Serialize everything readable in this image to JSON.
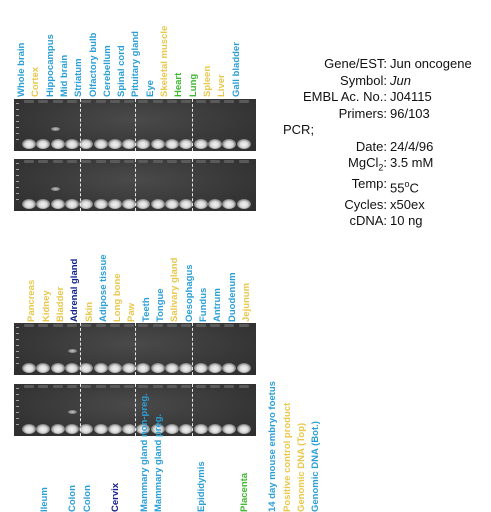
{
  "colors": {
    "blue": "#2a9fd6",
    "yellow": "#e8c84a",
    "green": "#3eb82e",
    "navy": "#0e1e8c",
    "gel_bg": "#383838"
  },
  "panel1": {
    "labels": [
      {
        "text": "Whole brain",
        "color": "blue"
      },
      {
        "text": "Cortex",
        "color": "yellow"
      },
      {
        "text": "Hippocampus",
        "color": "blue"
      },
      {
        "text": "Mid brain",
        "color": "blue"
      },
      {
        "text": "Striatum",
        "color": "blue"
      },
      {
        "text": "Olfactory bulb",
        "color": "blue"
      },
      {
        "text": "Cerebellum",
        "color": "blue"
      },
      {
        "text": "Spinal cord",
        "color": "blue"
      },
      {
        "text": "Pituitary gland",
        "color": "blue"
      },
      {
        "text": "Eye",
        "color": "blue"
      },
      {
        "text": "Skeletal muscle",
        "color": "yellow"
      },
      {
        "text": "Heart",
        "color": "green"
      },
      {
        "text": "Lung",
        "color": "green"
      },
      {
        "text": "Spleen",
        "color": "yellow"
      },
      {
        "text": "Liver",
        "color": "yellow"
      },
      {
        "text": "Gall bladder",
        "color": "blue"
      }
    ]
  },
  "panel2": {
    "labels": [
      {
        "text": "",
        "color": "blue"
      },
      {
        "text": "Pancreas",
        "color": "yellow"
      },
      {
        "text": "Kidney",
        "color": "yellow"
      },
      {
        "text": "Bladder",
        "color": "yellow"
      },
      {
        "text": "Adrenal gland",
        "color": "navy"
      },
      {
        "text": "Skin",
        "color": "yellow"
      },
      {
        "text": "Adipose tissue",
        "color": "blue"
      },
      {
        "text": "Long bone",
        "color": "yellow"
      },
      {
        "text": "Paw",
        "color": "yellow"
      },
      {
        "text": "Teeth",
        "color": "blue"
      },
      {
        "text": "Tongue",
        "color": "blue"
      },
      {
        "text": "Salivary gland",
        "color": "yellow"
      },
      {
        "text": "Oesophagus",
        "color": "blue"
      },
      {
        "text": "Fundus",
        "color": "blue"
      },
      {
        "text": "Antrum",
        "color": "blue"
      },
      {
        "text": "Duodenum",
        "color": "blue"
      },
      {
        "text": "Jejunum",
        "color": "yellow"
      }
    ]
  },
  "panel3": {
    "labels": [
      {
        "text": "",
        "color": "blue"
      },
      {
        "text": "",
        "color": "blue"
      },
      {
        "text": "Ileum",
        "color": "blue"
      },
      {
        "text": "",
        "color": "blue"
      },
      {
        "text": "Colon",
        "color": "blue"
      },
      {
        "text": "Colon",
        "color": "blue"
      },
      {
        "text": "",
        "color": "blue"
      },
      {
        "text": "Cervix",
        "color": "navy"
      },
      {
        "text": "",
        "color": "blue"
      },
      {
        "text": "Mammary gland non-preg.",
        "color": "blue"
      },
      {
        "text": "Mammary gland preg.",
        "color": "blue"
      },
      {
        "text": "",
        "color": "blue"
      },
      {
        "text": "",
        "color": "blue"
      },
      {
        "text": "Epididymis",
        "color": "blue"
      },
      {
        "text": "",
        "color": "blue"
      },
      {
        "text": "",
        "color": "blue"
      },
      {
        "text": "Placenta",
        "color": "green"
      },
      {
        "text": "",
        "color": "blue"
      },
      {
        "text": "14 day mouse embryo foetus",
        "color": "blue"
      },
      {
        "text": "Positive control product",
        "color": "yellow"
      },
      {
        "text": "Genomic DNA (Top)",
        "color": "yellow"
      },
      {
        "text": "Genomic DNA (Bot.)",
        "color": "blue"
      }
    ]
  },
  "info": {
    "gene_label": "Gene/EST:",
    "gene_value": "Jun oncogene",
    "symbol_label": "Symbol:",
    "symbol_value": "Jun",
    "embl_label": "EMBL Ac. No.:",
    "embl_value": "J04115",
    "primers_label": "Primers:",
    "primers_value": "96/103",
    "pcr_heading": "PCR;",
    "date_label": "Date:",
    "date_value": "24/4/96",
    "mgcl_label_pre": "MgCl",
    "mgcl_label_sub": "2",
    "mgcl_label_post": ":",
    "mgcl_value": "3.5 mM",
    "temp_label": "Temp:",
    "temp_value_num": "55",
    "temp_value_sup": "o",
    "temp_value_unit": "C",
    "cycles_label": "Cycles:",
    "cycles_value": "x50ex",
    "cdna_label": "cDNA:",
    "cdna_value": "10 ng"
  }
}
